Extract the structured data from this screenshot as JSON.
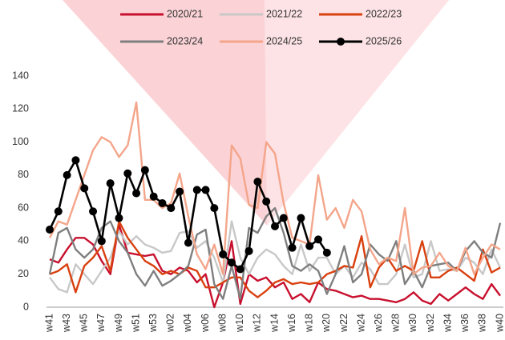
{
  "chart_data": {
    "type": "line",
    "categories": [
      "w41",
      null,
      "w43",
      null,
      "w45",
      null,
      "w47",
      null,
      "w49",
      null,
      "w51",
      null,
      "w53",
      null,
      "w02",
      null,
      "w04",
      null,
      "w06",
      null,
      "w08",
      null,
      "w10",
      null,
      "w12",
      null,
      "w14",
      null,
      "w16",
      null,
      "w18",
      null,
      "w20",
      null,
      "w22",
      null,
      "w24",
      null,
      "w26",
      null,
      "w28",
      null,
      "w30",
      null,
      "w32",
      null,
      "w34",
      null,
      "w36",
      null,
      "w38",
      null,
      "w40"
    ],
    "series": [
      {
        "name": "2020/21",
        "color": "#c8102e",
        "markers": false,
        "values": [
          29,
          27,
          35,
          42,
          42,
          38,
          28,
          20,
          50,
          33,
          32,
          31,
          32,
          22,
          20,
          24,
          22,
          15,
          20,
          0,
          15,
          40,
          2,
          20,
          16,
          18,
          12,
          15,
          5,
          8,
          3,
          15,
          11,
          10,
          8,
          6,
          7,
          5,
          5,
          4,
          3,
          5,
          9,
          4,
          2,
          8,
          4,
          8,
          12,
          8,
          5,
          14,
          7
        ]
      },
      {
        "name": "2021/22",
        "color": "#c8c8c8",
        "markers": false,
        "values": [
          18,
          11,
          9,
          26,
          20,
          14,
          22,
          30,
          46,
          38,
          43,
          38,
          36,
          33,
          34,
          45,
          46,
          36,
          40,
          30,
          15,
          52,
          30,
          20,
          30,
          35,
          32,
          25,
          20,
          38,
          22,
          30,
          30,
          20,
          25,
          18,
          27,
          23,
          14,
          14,
          20,
          38,
          18,
          20,
          40,
          22,
          23,
          22,
          30,
          27,
          20,
          35,
          24
        ]
      },
      {
        "name": "2022/23",
        "color": "#d9400f",
        "markers": false,
        "values": [
          20,
          22,
          26,
          9,
          25,
          30,
          37,
          22,
          52,
          42,
          35,
          28,
          25,
          20,
          22,
          20,
          24,
          22,
          12,
          12,
          15,
          18,
          18,
          10,
          6,
          10,
          15,
          17,
          14,
          15,
          14,
          15,
          20,
          22,
          25,
          24,
          43,
          12,
          24,
          30,
          22,
          25,
          22,
          40,
          18,
          18,
          22,
          24,
          20,
          16,
          35,
          21,
          24
        ]
      },
      {
        "name": "2023/24",
        "color": "#7f7f7f",
        "markers": false,
        "values": [
          20,
          45,
          48,
          35,
          30,
          35,
          48,
          52,
          40,
          33,
          20,
          13,
          22,
          13,
          16,
          20,
          25,
          44,
          47,
          14,
          5,
          25,
          5,
          48,
          45,
          55,
          60,
          45,
          25,
          22,
          26,
          22,
          8,
          20,
          37,
          15,
          20,
          38,
          32,
          28,
          40,
          14,
          22,
          12,
          25,
          26,
          27,
          22,
          34,
          40,
          33,
          30,
          51
        ]
      },
      {
        "name": "2024/25",
        "color": "#f4a58a",
        "markers": false,
        "values": [
          42,
          52,
          50,
          65,
          80,
          95,
          103,
          100,
          91,
          98,
          124,
          65,
          65,
          60,
          63,
          81,
          55,
          32,
          23,
          38,
          20,
          98,
          90,
          62,
          60,
          100,
          93,
          63,
          42,
          40,
          38,
          80,
          53,
          60,
          48,
          65,
          58,
          35,
          26,
          30,
          28,
          60,
          20,
          24,
          25,
          33,
          25,
          22,
          36,
          20,
          30,
          38,
          35
        ]
      },
      {
        "name": "2025/26",
        "color": "#000000",
        "markers": true,
        "values": [
          47,
          58,
          80,
          89,
          72,
          58,
          40,
          75,
          54,
          81,
          69,
          83,
          67,
          63,
          60,
          70,
          39,
          71,
          71,
          60,
          32,
          27,
          23,
          34,
          76,
          64,
          49,
          54,
          36,
          54,
          37,
          41,
          33,
          null,
          null,
          null,
          null,
          null,
          null,
          null,
          null,
          null,
          null,
          null,
          null,
          null,
          null,
          null,
          null,
          null,
          null,
          null,
          null
        ]
      }
    ],
    "ylim": [
      0,
      140
    ],
    "yticks": [
      0,
      20,
      40,
      60,
      80,
      100,
      120,
      140
    ],
    "grid": false
  }
}
